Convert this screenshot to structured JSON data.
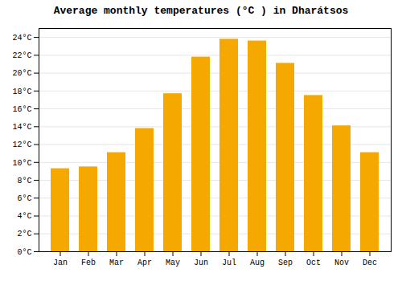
{
  "chart_data": {
    "type": "bar",
    "title": "Average monthly temperatures (°C ) in Dharátsos",
    "categories": [
      "Jan",
      "Feb",
      "Mar",
      "Apr",
      "May",
      "Jun",
      "Jul",
      "Aug",
      "Sep",
      "Oct",
      "Nov",
      "Dec"
    ],
    "values": [
      9.3,
      9.5,
      11.1,
      13.8,
      17.7,
      21.8,
      23.8,
      23.6,
      21.1,
      17.5,
      14.1,
      11.1
    ],
    "color": "#F5A800",
    "ylim": [
      0,
      25
    ],
    "yticks": [
      {
        "value": 0,
        "label": "0°C"
      },
      {
        "value": 2,
        "label": "2°C"
      },
      {
        "value": 4,
        "label": "4°C"
      },
      {
        "value": 6,
        "label": "6°C"
      },
      {
        "value": 8,
        "label": "8°C"
      },
      {
        "value": 10,
        "label": "10°C"
      },
      {
        "value": 12,
        "label": "12°C"
      },
      {
        "value": 14,
        "label": "14°C"
      },
      {
        "value": 16,
        "label": "16°C"
      },
      {
        "value": 18,
        "label": "18°C"
      },
      {
        "value": 20,
        "label": "20°C"
      },
      {
        "value": 22,
        "label": "22°C"
      },
      {
        "value": 24,
        "label": "24°C"
      }
    ],
    "grid": true
  }
}
